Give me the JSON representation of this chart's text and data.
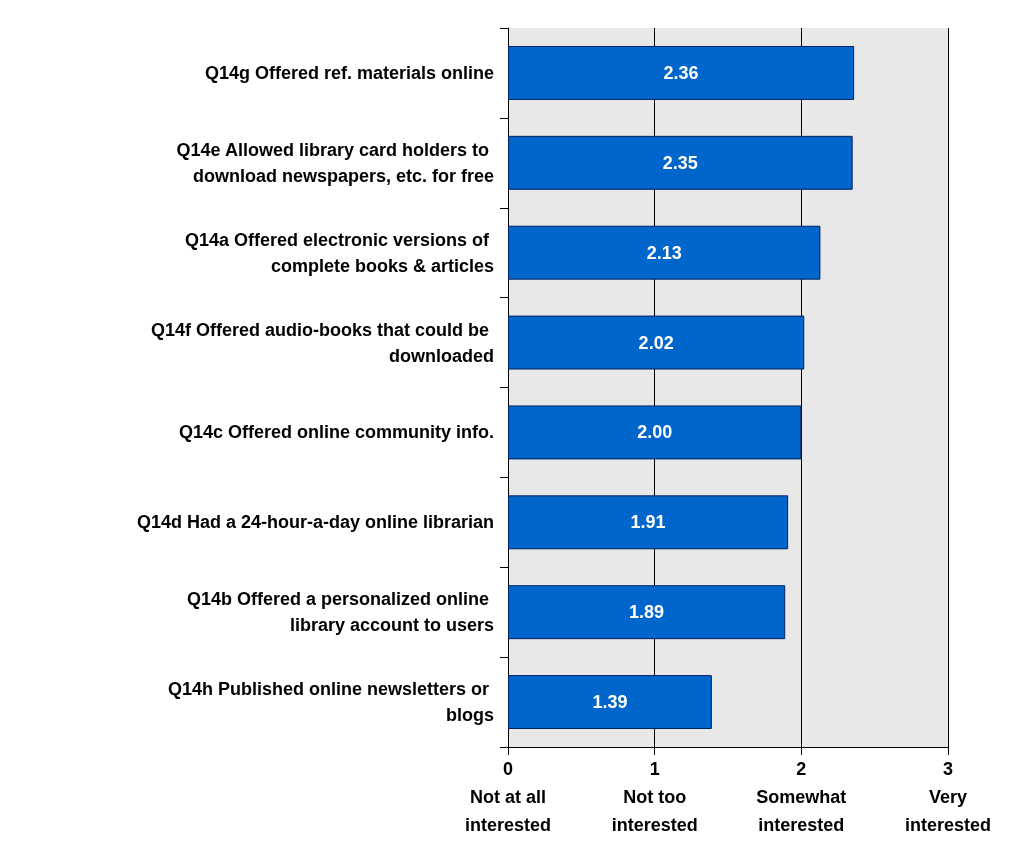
{
  "chart_data": {
    "type": "bar",
    "orientation": "horizontal",
    "categories": [
      "Q14g Offered ref. materials online",
      "Q14e Allowed library card holders to download newspapers, etc. for free",
      "Q14a Offered electronic versions of complete books & articles",
      "Q14f Offered audio-books that could be downloaded",
      "Q14c Offered online community info.",
      "Q14d Had a 24-hour-a-day online librarian",
      "Q14b Offered a personalized online library account to users",
      "Q14h Published online newsletters or blogs"
    ],
    "values": [
      2.36,
      2.35,
      2.13,
      2.02,
      2.0,
      1.91,
      1.89,
      1.39
    ],
    "color": "#0066cc",
    "value_labels": [
      "2.36",
      "2.35",
      "2.13",
      "2.02",
      "2.00",
      "1.91",
      "1.89",
      "1.39"
    ],
    "xlim": [
      0,
      3
    ],
    "xticks": [
      {
        "value": 0,
        "label": "0\nNot at all\ninterested"
      },
      {
        "value": 1,
        "label": "1\nNot too\ninterested"
      },
      {
        "value": 2,
        "label": "2\nSomewhat\ninterested"
      },
      {
        "value": 3,
        "label": "3\nVery\ninterested"
      }
    ],
    "grid": "x"
  }
}
